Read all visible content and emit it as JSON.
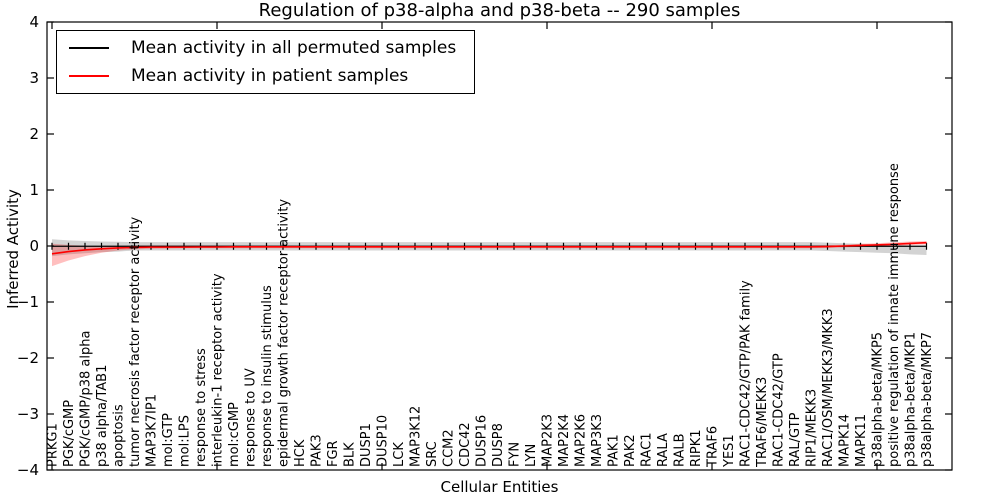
{
  "figure": {
    "background": "#ffffff",
    "frame_color": "#000000"
  },
  "chart_data": {
    "type": "line",
    "title": "Regulation of p38-alpha and p38-beta -- 290 samples",
    "xlabel": "Cellular Entities",
    "ylabel": "Inferred Activity",
    "ylim": [
      -4,
      4
    ],
    "ytick_values": [
      4,
      3,
      2,
      1,
      0,
      -1,
      -2,
      -3,
      -4
    ],
    "ytick_labels": [
      "4",
      "3",
      "2",
      "1",
      "0",
      "−1",
      "−2",
      "−3",
      "−4"
    ],
    "xtick_major_indices": [
      0,
      10,
      20,
      30,
      40,
      50
    ],
    "grid": false,
    "legend_position": "upper left",
    "categories": [
      "PRKG1",
      "PGK/cGMP",
      "PGK/cGMP/p38 alpha",
      "p38 alpha/TAB1",
      "apoptosis",
      "tumor necrosis factor receptor activity",
      "MAP3K7IP1",
      "mol:GTP",
      "mol:LPS",
      "response to stress",
      "interleukin-1 receptor activity",
      "mol:cGMP",
      "response to UV",
      "response to insulin stimulus",
      "epidermal growth factor receptor activity",
      "HCK",
      "PAK3",
      "FGR",
      "BLK",
      "DUSP1",
      "DUSP10",
      "LCK",
      "MAP3K12",
      "SRC",
      "CCM2",
      "CDC42",
      "DUSP16",
      "DUSP8",
      "FYN",
      "LYN",
      "MAP2K3",
      "MAP2K4",
      "MAP2K6",
      "MAP3K3",
      "PAK1",
      "PAK2",
      "RAC1",
      "RALA",
      "RALB",
      "RIPK1",
      "TRAF6",
      "YES1",
      "RAC1-CDC42/GTP/PAK family",
      "TRAF6/MEKK3",
      "RAC1-CDC42/GTP",
      "RAL/GTP",
      "RIP1/MEKK3",
      "RAC1/OSM/MEKK3/MKK3",
      "MAPK14",
      "MAPK11",
      "p38alpha-beta/MKP5",
      "positive regulation of innate immune response",
      "p38alpha-beta/MKP1",
      "p38alpha-beta/MKP7"
    ],
    "series": [
      {
        "name": "Mean activity in all permuted samples",
        "color": "#000000",
        "band_color": "rgba(130,130,130,0.35)",
        "marker": "|",
        "values": [
          -0.005,
          -0.005,
          -0.005,
          -0.005,
          -0.005,
          -0.005,
          -0.005,
          -0.005,
          -0.005,
          -0.005,
          -0.005,
          -0.005,
          -0.005,
          -0.005,
          -0.005,
          -0.005,
          -0.005,
          -0.005,
          -0.005,
          -0.005,
          -0.005,
          -0.005,
          -0.005,
          -0.005,
          -0.005,
          -0.005,
          -0.005,
          -0.005,
          -0.005,
          -0.005,
          -0.005,
          -0.005,
          -0.005,
          -0.005,
          -0.005,
          -0.005,
          -0.005,
          -0.005,
          -0.005,
          -0.005,
          -0.005,
          -0.005,
          -0.005,
          -0.005,
          -0.005,
          -0.005,
          -0.005,
          -0.005,
          -0.005,
          -0.005,
          -0.005,
          -0.005,
          -0.005,
          -0.005
        ],
        "upper": [
          0.12,
          0.1,
          0.09,
          0.08,
          0.075,
          0.07,
          0.07,
          0.07,
          0.07,
          0.07,
          0.07,
          0.07,
          0.07,
          0.07,
          0.07,
          0.07,
          0.07,
          0.07,
          0.07,
          0.07,
          0.07,
          0.07,
          0.07,
          0.07,
          0.07,
          0.07,
          0.07,
          0.07,
          0.07,
          0.07,
          0.07,
          0.07,
          0.07,
          0.07,
          0.07,
          0.07,
          0.07,
          0.07,
          0.07,
          0.07,
          0.07,
          0.07,
          0.07,
          0.07,
          0.07,
          0.07,
          0.07,
          0.06,
          0.05,
          0.04,
          0.03,
          0.02,
          0.01,
          0.01
        ],
        "lower": [
          -0.18,
          -0.15,
          -0.13,
          -0.11,
          -0.1,
          -0.08,
          -0.08,
          -0.08,
          -0.08,
          -0.08,
          -0.08,
          -0.08,
          -0.08,
          -0.08,
          -0.08,
          -0.08,
          -0.08,
          -0.08,
          -0.08,
          -0.08,
          -0.08,
          -0.08,
          -0.08,
          -0.08,
          -0.08,
          -0.08,
          -0.08,
          -0.08,
          -0.08,
          -0.08,
          -0.08,
          -0.08,
          -0.08,
          -0.08,
          -0.08,
          -0.08,
          -0.08,
          -0.08,
          -0.08,
          -0.08,
          -0.08,
          -0.08,
          -0.08,
          -0.08,
          -0.08,
          -0.08,
          -0.08,
          -0.09,
          -0.1,
          -0.11,
          -0.12,
          -0.13,
          -0.15,
          -0.16
        ]
      },
      {
        "name": "Mean activity in patient samples",
        "color": "#ff0000",
        "band_color": "rgba(255,0,0,0.25)",
        "marker": "none",
        "values": [
          -0.14,
          -0.1,
          -0.07,
          -0.05,
          -0.035,
          -0.025,
          -0.02,
          -0.02,
          -0.02,
          -0.018,
          -0.018,
          -0.015,
          -0.015,
          -0.015,
          -0.015,
          -0.015,
          -0.015,
          -0.015,
          -0.015,
          -0.015,
          -0.015,
          -0.015,
          -0.015,
          -0.015,
          -0.015,
          -0.015,
          -0.015,
          -0.015,
          -0.015,
          -0.015,
          -0.015,
          -0.015,
          -0.015,
          -0.015,
          -0.015,
          -0.015,
          -0.015,
          -0.015,
          -0.015,
          -0.015,
          -0.015,
          -0.015,
          -0.015,
          -0.015,
          -0.015,
          -0.015,
          -0.015,
          -0.01,
          0.0,
          0.01,
          0.02,
          0.03,
          0.045,
          0.06
        ],
        "upper": [
          0.04,
          0.02,
          0.005,
          -0.005,
          -0.005,
          0.0,
          0.005,
          0.01,
          0.01,
          0.01,
          0.01,
          0.01,
          0.01,
          0.01,
          0.01,
          0.01,
          0.01,
          0.01,
          0.01,
          0.01,
          0.01,
          0.01,
          0.01,
          0.01,
          0.01,
          0.01,
          0.01,
          0.01,
          0.01,
          0.01,
          0.01,
          0.01,
          0.01,
          0.01,
          0.01,
          0.01,
          0.01,
          0.01,
          0.01,
          0.01,
          0.01,
          0.01,
          0.01,
          0.01,
          0.01,
          0.01,
          0.01,
          0.015,
          0.025,
          0.04,
          0.05,
          0.065,
          0.08,
          0.09
        ],
        "lower": [
          -0.36,
          -0.26,
          -0.18,
          -0.12,
          -0.08,
          -0.06,
          -0.05,
          -0.045,
          -0.04,
          -0.04,
          -0.04,
          -0.04,
          -0.04,
          -0.04,
          -0.04,
          -0.04,
          -0.04,
          -0.04,
          -0.04,
          -0.04,
          -0.04,
          -0.04,
          -0.04,
          -0.04,
          -0.04,
          -0.04,
          -0.04,
          -0.04,
          -0.04,
          -0.04,
          -0.04,
          -0.04,
          -0.04,
          -0.04,
          -0.04,
          -0.04,
          -0.04,
          -0.04,
          -0.04,
          -0.04,
          -0.04,
          -0.04,
          -0.04,
          -0.04,
          -0.04,
          -0.04,
          -0.04,
          -0.035,
          -0.025,
          -0.015,
          -0.005,
          0.005,
          0.015,
          0.03
        ]
      }
    ]
  }
}
